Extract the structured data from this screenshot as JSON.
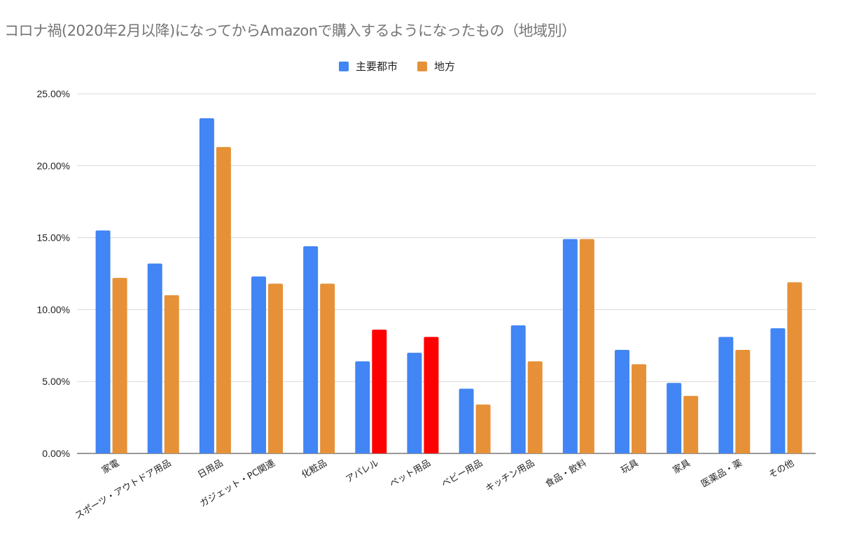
{
  "chart_data": {
    "type": "bar",
    "title": "コロナ禍(2020年2月以降)になってからAmazonで購入するようになったもの（地域別）",
    "categories": [
      "家電",
      "スポーツ・アウトドア用品",
      "日用品",
      "ガジェット・PC関連",
      "化粧品",
      "アパレル",
      "ペット用品",
      "ベビー用品",
      "キッチン用品",
      "食品・飲料",
      "玩具",
      "家具",
      "医薬品・薬",
      "その他"
    ],
    "series": [
      {
        "name": "主要都市",
        "color": "#4285f4",
        "values": [
          15.5,
          13.2,
          23.3,
          12.3,
          14.4,
          6.4,
          7.0,
          4.5,
          8.9,
          14.9,
          7.2,
          4.9,
          8.1,
          8.7
        ]
      },
      {
        "name": "地方",
        "color": "#e69138",
        "values": [
          12.2,
          11.0,
          21.3,
          11.8,
          11.8,
          8.6,
          8.1,
          3.4,
          6.4,
          14.9,
          6.2,
          4.0,
          7.2,
          11.9
        ],
        "highlight_color": "#ff0000",
        "highlighted_categories": [
          "アパレル",
          "ペット用品"
        ]
      }
    ],
    "yticks": [
      "0.00%",
      "5.00%",
      "10.00%",
      "15.00%",
      "20.00%",
      "25.00%"
    ],
    "ylim": [
      0,
      25
    ],
    "grid": true,
    "legend": "top-center",
    "xlabel": "",
    "ylabel": ""
  }
}
